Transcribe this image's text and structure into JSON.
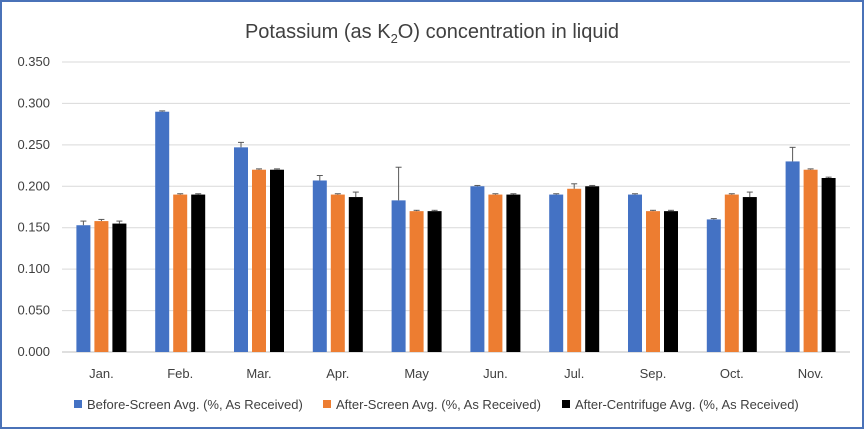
{
  "chart_data": {
    "type": "bar",
    "title": "Potassium (as K2O) concentration in liquid",
    "title_parts": {
      "before": "Potassium (as K",
      "subscript": "2",
      "after": "O) concentration in liquid"
    },
    "xlabel": "",
    "ylabel": "",
    "ylim": [
      0,
      0.35
    ],
    "yticks": [
      "0.000",
      "0.050",
      "0.100",
      "0.150",
      "0.200",
      "0.250",
      "0.300",
      "0.350"
    ],
    "grid": true,
    "legend_position": "bottom",
    "categories": [
      "Jan.",
      "Feb.",
      "Mar.",
      "Apr.",
      "May",
      "Jun.",
      "Jul.",
      "Sep.",
      "Oct.",
      "Nov."
    ],
    "series": [
      {
        "name": "Before-Screen Avg. (%, As Received)",
        "color": "#4472c4",
        "values": [
          0.153,
          0.29,
          0.247,
          0.207,
          0.183,
          0.2,
          0.19,
          0.19,
          0.16,
          0.23
        ],
        "error": [
          0.005,
          0.001,
          0.006,
          0.006,
          0.04,
          0.001,
          0.001,
          0.001,
          0.001,
          0.017
        ]
      },
      {
        "name": "After-Screen Avg. (%, As Received)",
        "color": "#ed7d31",
        "values": [
          0.158,
          0.19,
          0.22,
          0.19,
          0.17,
          0.19,
          0.197,
          0.17,
          0.19,
          0.22
        ],
        "error": [
          0.002,
          0.001,
          0.001,
          0.001,
          0.001,
          0.001,
          0.006,
          0.001,
          0.001,
          0.001
        ]
      },
      {
        "name": "After-Centrifuge Avg. (%, As Received)",
        "color": "#000000",
        "values": [
          0.155,
          0.19,
          0.22,
          0.187,
          0.17,
          0.19,
          0.2,
          0.17,
          0.187,
          0.21
        ],
        "error": [
          0.003,
          0.001,
          0.001,
          0.006,
          0.001,
          0.001,
          0.001,
          0.001,
          0.006,
          0.001
        ]
      }
    ]
  }
}
